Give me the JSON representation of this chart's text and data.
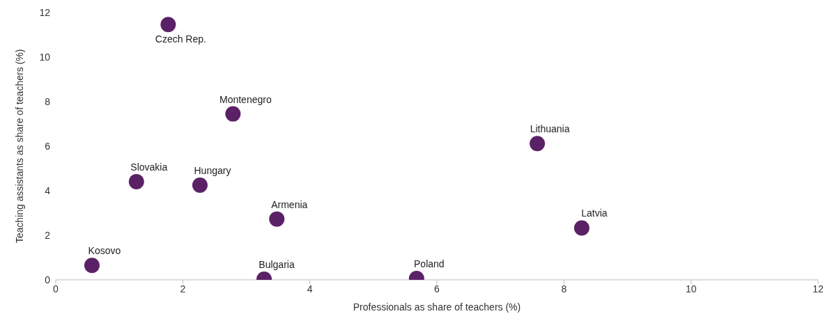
{
  "chart_data": {
    "type": "scatter",
    "xlabel": "Professionals as share of teachers (%)",
    "ylabel": "Teaching assistants as share of teachers (%)",
    "xlim": [
      0,
      12
    ],
    "xticks": [
      0,
      2,
      4,
      6,
      8,
      10,
      12
    ],
    "ylim": [
      0,
      12
    ],
    "yticks": [
      0,
      2,
      4,
      6,
      8,
      10,
      12
    ],
    "grid": false,
    "legend": false,
    "marker": "circle",
    "series": [
      {
        "color": "#5b2166",
        "x": [
          1.77,
          2.79,
          7.58,
          1.27,
          2.27,
          3.48,
          8.28,
          0.57,
          3.28,
          5.68
        ],
        "values": [
          11.46,
          7.45,
          6.12,
          4.41,
          4.25,
          2.73,
          2.33,
          0.65,
          0.03,
          0.06
        ]
      }
    ],
    "annotations": [
      {
        "text": "Czech Rep.",
        "x": 1.77,
        "y": 11.46
      },
      {
        "text": "Montenegro",
        "x": 2.79,
        "y": 7.45
      },
      {
        "text": "Lithuania",
        "x": 7.58,
        "y": 6.12
      },
      {
        "text": "Slovakia",
        "x": 1.27,
        "y": 4.41
      },
      {
        "text": "Hungary",
        "x": 2.27,
        "y": 4.25
      },
      {
        "text": "Armenia",
        "x": 3.48,
        "y": 2.73
      },
      {
        "text": "Latvia",
        "x": 8.28,
        "y": 2.33
      },
      {
        "text": "Kosovo",
        "x": 0.57,
        "y": 0.65
      },
      {
        "text": "Bulgaria",
        "x": 3.28,
        "y": 0.03
      },
      {
        "text": "Poland",
        "x": 5.68,
        "y": 0.06
      }
    ]
  }
}
